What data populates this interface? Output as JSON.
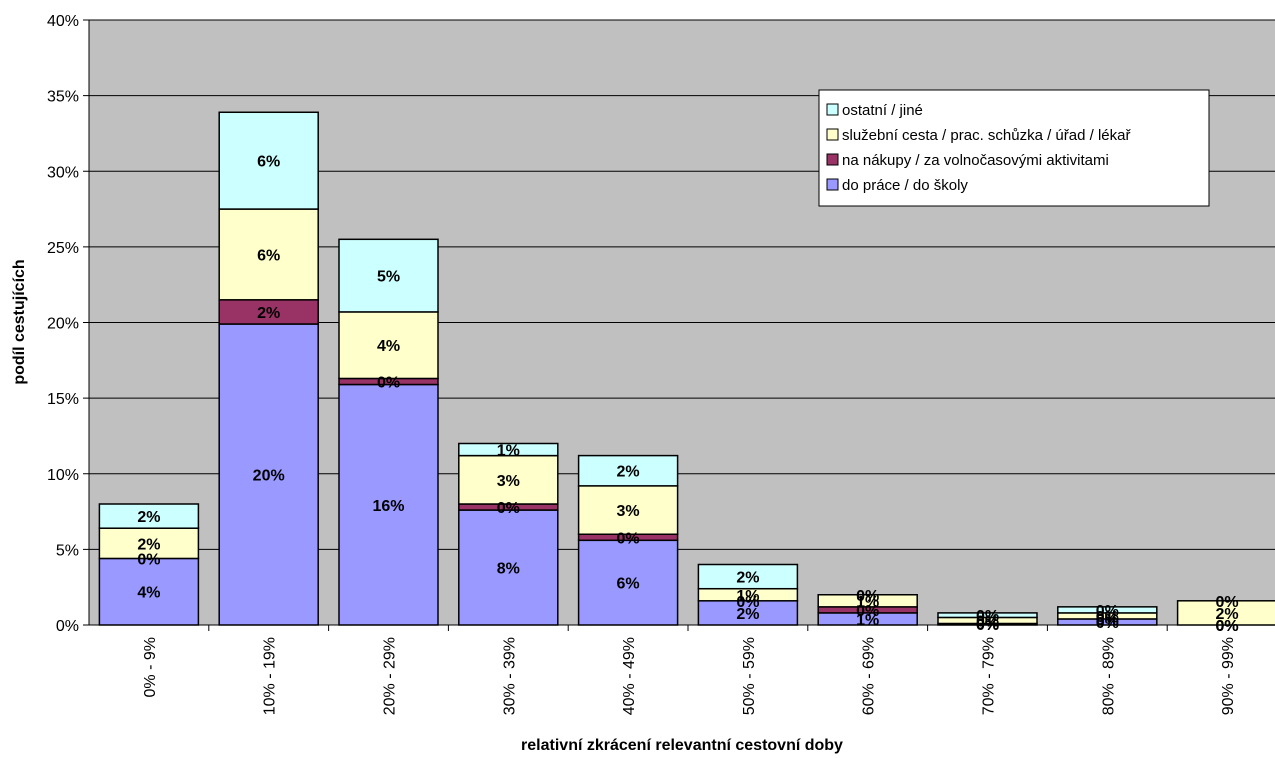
{
  "chart_data": {
    "type": "bar",
    "stacked": true,
    "title": "",
    "xlabel": "relativní zkrácení relevantní cestovní doby",
    "ylabel": "podíl cestujících",
    "ylim": [
      0,
      0.4
    ],
    "y_ticks": [
      "0%",
      "5%",
      "10%",
      "15%",
      "20%",
      "25%",
      "30%",
      "35%",
      "40%"
    ],
    "grid": true,
    "legend_position": "top-right",
    "plot_background": "#C0C0C0",
    "categories": [
      "0% - 9%",
      "10% - 19%",
      "20% - 29%",
      "30% - 39%",
      "40% - 49%",
      "50% - 59%",
      "60% - 69%",
      "70% - 79%",
      "80% - 89%",
      "90% - 99%"
    ],
    "series": [
      {
        "name": "do práce / do školy",
        "color": "#9999FF",
        "values": [
          0.044,
          0.199,
          0.159,
          0.076,
          0.056,
          0.016,
          0.008,
          0.001,
          0.004,
          0.0
        ],
        "labels": [
          "4%",
          "20%",
          "16%",
          "8%",
          "6%",
          "2%",
          "1%",
          "0%",
          "0%",
          "0%"
        ]
      },
      {
        "name": "na nákupy / za volnočasovými aktivitami",
        "color": "#993366",
        "values": [
          0.0,
          0.016,
          0.004,
          0.004,
          0.004,
          0.0,
          0.004,
          0.0,
          0.0,
          0.0
        ],
        "labels": [
          "0%",
          "2%",
          "0%",
          "0%",
          "0%",
          "0%",
          "0%",
          "0%",
          "0%",
          "0%"
        ]
      },
      {
        "name": "služební cesta / prac. schůzka / úřad / lékař",
        "color": "#FFFFCC",
        "values": [
          0.02,
          0.06,
          0.044,
          0.032,
          0.032,
          0.008,
          0.008,
          0.004,
          0.004,
          0.016
        ],
        "labels": [
          "2%",
          "6%",
          "4%",
          "3%",
          "3%",
          "1%",
          "1%",
          "0%",
          "0%",
          "2%"
        ]
      },
      {
        "name": "ostatní / jiné",
        "color": "#CCFFFF",
        "values": [
          0.016,
          0.064,
          0.048,
          0.008,
          0.02,
          0.016,
          0.0,
          0.003,
          0.004,
          0.0
        ],
        "labels": [
          "2%",
          "6%",
          "5%",
          "1%",
          "2%",
          "2%",
          "0%",
          "0%",
          "0%",
          "0%"
        ]
      }
    ]
  }
}
